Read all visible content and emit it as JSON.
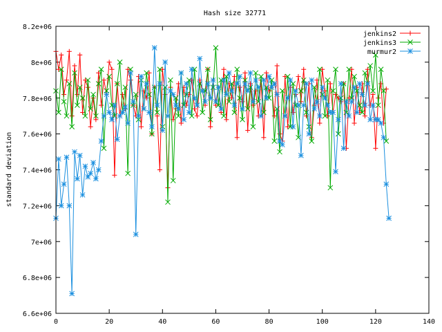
{
  "chart_data": {
    "type": "line",
    "title": "Hash size 32771",
    "xlabel": "",
    "ylabel": "standard deviation",
    "xlim": [
      0,
      140
    ],
    "ylim": [
      6600000,
      8200000
    ],
    "xticks": [
      0,
      20,
      40,
      60,
      80,
      100,
      120,
      140
    ],
    "xtick_labels": [
      "0",
      "20",
      "40",
      "60",
      "80",
      "100",
      "120",
      "140"
    ],
    "yticks": [
      6600000,
      6800000,
      7000000,
      7200000,
      7400000,
      7600000,
      7800000,
      8000000,
      8200000
    ],
    "ytick_labels": [
      "6.6e+06",
      "6.8e+06",
      "7e+06",
      "7.2e+06",
      "7.4e+06",
      "7.6e+06",
      "7.8e+06",
      "8e+06",
      "8.2e+06"
    ],
    "grid": false,
    "legend_position": "top-right",
    "series": [
      {
        "name": "jenkins2",
        "color": "#ff0000",
        "marker": "plus",
        "x": [
          0,
          1,
          2,
          3,
          4,
          5,
          6,
          7,
          8,
          9,
          10,
          11,
          12,
          13,
          14,
          15,
          16,
          17,
          18,
          19,
          20,
          21,
          22,
          23,
          24,
          25,
          26,
          27,
          28,
          29,
          30,
          31,
          32,
          33,
          34,
          35,
          36,
          37,
          38,
          39,
          40,
          41,
          42,
          43,
          44,
          45,
          46,
          47,
          48,
          49,
          50,
          51,
          52,
          53,
          54,
          55,
          56,
          57,
          58,
          59,
          60,
          61,
          62,
          63,
          64,
          65,
          66,
          67,
          68,
          69,
          70,
          71,
          72,
          73,
          74,
          75,
          76,
          77,
          78,
          79,
          80,
          81,
          82,
          83,
          84,
          85,
          86,
          87,
          88,
          89,
          90,
          91,
          92,
          93,
          94,
          95,
          96,
          97,
          98,
          99,
          100,
          101,
          102,
          103,
          104,
          105,
          106,
          107,
          108,
          109,
          110,
          111,
          112,
          113,
          114,
          115,
          116,
          117,
          118,
          119,
          120,
          121,
          122,
          123,
          124
        ],
        "values": [
          8060000,
          7960000,
          8040000,
          7820000,
          7900000,
          8060000,
          7700000,
          7980000,
          7820000,
          8040000,
          7720000,
          7900000,
          7860000,
          7640000,
          7800000,
          7680000,
          7940000,
          7760000,
          7900000,
          7820000,
          8000000,
          7960000,
          7370000,
          7880000,
          7700000,
          7820000,
          7740000,
          7960000,
          7900000,
          7760000,
          7700000,
          7920000,
          7640000,
          7840000,
          7800000,
          7940000,
          7600000,
          7860000,
          7700000,
          7400000,
          7960000,
          7820000,
          7300000,
          7860000,
          7680000,
          7740000,
          7880000,
          7660000,
          7860000,
          7760000,
          7820000,
          7900000,
          7740000,
          7700000,
          7900000,
          7840000,
          7760000,
          7960000,
          7640000,
          7900000,
          7760000,
          7860000,
          7720000,
          7960000,
          7680000,
          7880000,
          7800000,
          7920000,
          7580000,
          7860000,
          7780000,
          7940000,
          7620000,
          7880000,
          7760000,
          7840000,
          7700000,
          7900000,
          7580000,
          7940000,
          7840000,
          7860000,
          7700000,
          7980000,
          7600000,
          7560000,
          7920000,
          7640000,
          7860000,
          7720000,
          7820000,
          7920000,
          7780000,
          7960000,
          7700000,
          7880000,
          7580000,
          7760000,
          7900000,
          7660000,
          7960000,
          7840000,
          7700000,
          7880000,
          7720000,
          7820000,
          7800000,
          7780000,
          7880000,
          7520000,
          7800000,
          7960000,
          7660000,
          7860000,
          7720000,
          7880000,
          7700000,
          7960000,
          7760000,
          7820000,
          7520000,
          7800000,
          7880000,
          7660000,
          7850000
        ]
      },
      {
        "name": "jenkins3",
        "color": "#00aa00",
        "marker": "cross",
        "x": [
          0,
          1,
          2,
          3,
          4,
          5,
          6,
          7,
          8,
          9,
          10,
          11,
          12,
          13,
          14,
          15,
          16,
          17,
          18,
          19,
          20,
          21,
          22,
          23,
          24,
          25,
          26,
          27,
          28,
          29,
          30,
          31,
          32,
          33,
          34,
          35,
          36,
          37,
          38,
          39,
          40,
          41,
          42,
          43,
          44,
          45,
          46,
          47,
          48,
          49,
          50,
          51,
          52,
          53,
          54,
          55,
          56,
          57,
          58,
          59,
          60,
          61,
          62,
          63,
          64,
          65,
          66,
          67,
          68,
          69,
          70,
          71,
          72,
          73,
          74,
          75,
          76,
          77,
          78,
          79,
          80,
          81,
          82,
          83,
          84,
          85,
          86,
          87,
          88,
          89,
          90,
          91,
          92,
          93,
          94,
          95,
          96,
          97,
          98,
          99,
          100,
          101,
          102,
          103,
          104,
          105,
          106,
          107,
          108,
          109,
          110,
          111,
          112,
          113,
          114,
          115,
          116,
          117,
          118,
          119,
          120,
          121,
          122,
          123,
          124
        ],
        "values": [
          7840000,
          7720000,
          7960000,
          7780000,
          7700000,
          7880000,
          7640000,
          7940000,
          7760000,
          7860000,
          7800000,
          7700000,
          7900000,
          7740000,
          7820000,
          7700000,
          7880000,
          7960000,
          7520000,
          7840000,
          7920000,
          7760000,
          7700000,
          7880000,
          8000000,
          7720000,
          7860000,
          7380000,
          7960000,
          7760000,
          7820000,
          7680000,
          7900000,
          7740000,
          7940000,
          7820000,
          7600000,
          7860000,
          7720000,
          7960000,
          7640000,
          7860000,
          7220000,
          7900000,
          7340000,
          7800000,
          7700000,
          7940000,
          7760000,
          7820000,
          7900000,
          7700000,
          7960000,
          7760000,
          7880000,
          7720000,
          7840000,
          7960000,
          7680000,
          7860000,
          8080000,
          7760000,
          7900000,
          7700000,
          7920000,
          7780000,
          7880000,
          7720000,
          7960000,
          7800000,
          7680000,
          7900000,
          7740000,
          7860000,
          7640000,
          7940000,
          7780000,
          7920000,
          7720000,
          7860000,
          7800000,
          7900000,
          7560000,
          7740000,
          7500000,
          7840000,
          7700000,
          7920000,
          7640000,
          7880000,
          7760000,
          7580000,
          7840000,
          7900000,
          7720000,
          7640000,
          7560000,
          7860000,
          7780000,
          7960000,
          7820000,
          7700000,
          7900000,
          7300000,
          7840000,
          7960000,
          7600000,
          7800000,
          7880000,
          7720000,
          7960000,
          7800000,
          7920000,
          7840000,
          7760000,
          7720000,
          7940000,
          7880000,
          7980000,
          7840000,
          8040000,
          7760000,
          7960000,
          7840000,
          7560000
        ]
      },
      {
        "name": "murmur2",
        "color": "#1a8fdf",
        "marker": "star",
        "x": [
          0,
          1,
          2,
          3,
          4,
          5,
          6,
          7,
          8,
          9,
          10,
          11,
          12,
          13,
          14,
          15,
          16,
          17,
          18,
          19,
          20,
          21,
          22,
          23,
          24,
          25,
          26,
          27,
          28,
          29,
          30,
          31,
          32,
          33,
          34,
          35,
          36,
          37,
          38,
          39,
          40,
          41,
          42,
          43,
          44,
          45,
          46,
          47,
          48,
          49,
          50,
          51,
          52,
          53,
          54,
          55,
          56,
          57,
          58,
          59,
          60,
          61,
          62,
          63,
          64,
          65,
          66,
          67,
          68,
          69,
          70,
          71,
          72,
          73,
          74,
          75,
          76,
          77,
          78,
          79,
          80,
          81,
          82,
          83,
          84,
          85,
          86,
          87,
          88,
          89,
          90,
          91,
          92,
          93,
          94,
          95,
          96,
          97,
          98,
          99,
          100,
          101,
          102,
          103,
          104,
          105,
          106,
          107,
          108,
          109,
          110,
          111,
          112,
          113,
          114,
          115,
          116,
          117,
          118,
          119,
          120,
          121,
          122,
          123,
          124,
          125
        ],
        "values": [
          7130000,
          7460000,
          7200000,
          7320000,
          7470000,
          7200000,
          6710000,
          7500000,
          7350000,
          7480000,
          7260000,
          7420000,
          7360000,
          7380000,
          7440000,
          7350000,
          7400000,
          7560000,
          7700000,
          7820000,
          7720000,
          7680000,
          7760000,
          7570000,
          7700000,
          7720000,
          7750000,
          7660000,
          7940000,
          7780000,
          7040000,
          7700000,
          7920000,
          7740000,
          7880000,
          7720000,
          7640000,
          8080000,
          7760000,
          7880000,
          7620000,
          8000000,
          7700000,
          7840000,
          7820000,
          7760000,
          7740000,
          7940000,
          7680000,
          7880000,
          7720000,
          7960000,
          7800000,
          7760000,
          8020000,
          7840000,
          7780000,
          7880000,
          7800000,
          7900000,
          7780000,
          7860000,
          7740000,
          7900000,
          7820000,
          7940000,
          7840000,
          7760000,
          7880000,
          7920000,
          7740000,
          7880000,
          7840000,
          7940000,
          7780000,
          7900000,
          7860000,
          7700000,
          7900000,
          7800000,
          7920000,
          7860000,
          7880000,
          7820000,
          7560000,
          7540000,
          7700000,
          7800000,
          7900000,
          7640000,
          7840000,
          7760000,
          7480000,
          7760000,
          7880000,
          7600000,
          7900000,
          7740000,
          7780000,
          7700000,
          7860000,
          7800000,
          7760000,
          7720000,
          7720000,
          7390000,
          7680000,
          7880000,
          7520000,
          7780000,
          7700000,
          7780000,
          7860000,
          7720000,
          7880000,
          7820000,
          7760000,
          7880000,
          7680000,
          7760000,
          7680000,
          7680000,
          7660000,
          7580000,
          7320000,
          7130000
        ]
      }
    ]
  }
}
